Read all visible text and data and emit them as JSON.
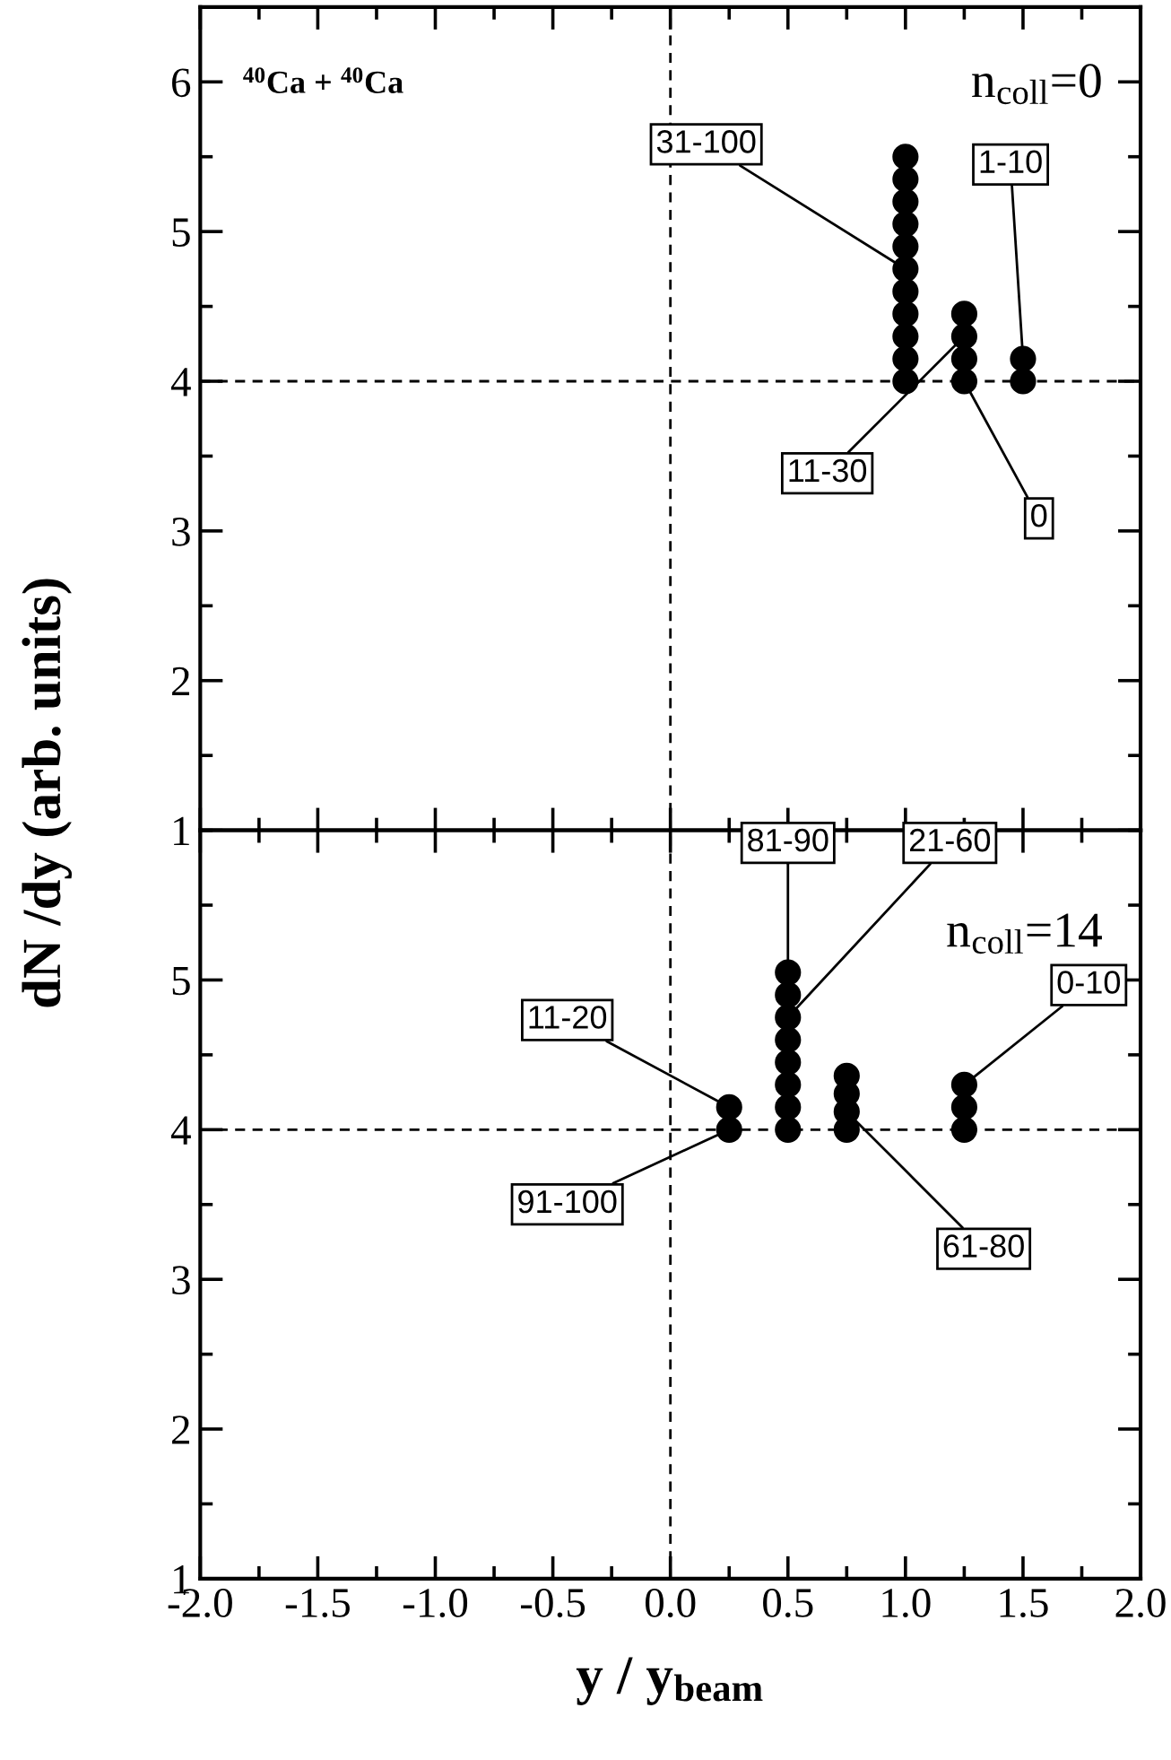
{
  "chart_data": [
    {
      "type": "scatter",
      "ylabel": "dN /dy (arb. units)",
      "xlim": [
        -2.0,
        2.0
      ],
      "xticks": [
        -2,
        -1.5,
        -1,
        -0.5,
        0,
        0.5,
        1,
        1.5,
        2
      ],
      "ylim": [
        1,
        6.5
      ],
      "yticks": [
        1,
        2,
        3,
        4,
        5,
        6
      ],
      "tick_labels": "y",
      "marker": "circle",
      "series": [
        {
          "color": "#000000",
          "x": [
            1.0,
            1.0,
            1.0,
            1.0,
            1.0,
            1.0,
            1.0,
            1.0,
            1.0,
            1.0,
            1.0
          ],
          "values": [
            4.0,
            4.15,
            4.3,
            4.45,
            4.6,
            4.75,
            4.9,
            5.05,
            5.2,
            5.35,
            5.5
          ]
        },
        {
          "color": "#000000",
          "x": [
            1.25,
            1.25,
            1.25,
            1.25
          ],
          "values": [
            4.0,
            4.15,
            4.3,
            4.45
          ]
        },
        {
          "color": "#000000",
          "x": [
            1.5,
            1.5
          ],
          "values": [
            4.0,
            4.15
          ]
        }
      ],
      "ref_lines": [
        {
          "axis": "y",
          "value": 4,
          "line_style": "dashed",
          "color": "#000000"
        },
        {
          "axis": "x",
          "value": 0,
          "line_style": "dashed",
          "color": "#000000"
        }
      ],
      "annotations": [
        "$^{40}$Ca + $^{40}$Ca",
        "n$_{coll}$=0",
        {
          "text": "31-100",
          "x": 1.0,
          "y": 4.75
        },
        {
          "text": "11-30",
          "x": 1.25,
          "y": 4.3
        },
        {
          "text": "0",
          "x": 1.25,
          "y": 4.0
        },
        {
          "text": "1-10",
          "x": 1.5,
          "y": 4.15
        }
      ]
    },
    {
      "type": "scatter",
      "xlabel": "y / y$_{beam}$",
      "xlim": [
        -2.0,
        2.0
      ],
      "xticks": [
        {
          "value": -2,
          "label": "-2.0"
        },
        -1.5,
        {
          "value": -1,
          "label": "-1.0"
        },
        -0.5,
        {
          "value": 0,
          "label": "0.0"
        },
        0.5,
        {
          "value": 1,
          "label": "1.0"
        },
        1.5,
        {
          "value": 2,
          "label": "2.0"
        }
      ],
      "ylim": [
        1,
        6
      ],
      "yticks": [
        1,
        2,
        3,
        4,
        5
      ],
      "marker": "circle",
      "series": [
        {
          "color": "#000000",
          "x": [
            0.25,
            0.25
          ],
          "values": [
            4.0,
            4.15
          ]
        },
        {
          "color": "#000000",
          "x": [
            0.5,
            0.5,
            0.5,
            0.5,
            0.5,
            0.5,
            0.5,
            0.5
          ],
          "values": [
            4.0,
            4.15,
            4.3,
            4.45,
            4.6,
            4.75,
            4.9,
            5.05
          ]
        },
        {
          "color": "#000000",
          "x": [
            0.75,
            0.75,
            0.75,
            0.75
          ],
          "values": [
            4.0,
            4.12,
            4.24,
            4.36
          ]
        },
        {
          "color": "#000000",
          "x": [
            1.25,
            1.25,
            1.25
          ],
          "values": [
            4.0,
            4.15,
            4.3
          ]
        }
      ],
      "ref_lines": [
        {
          "axis": "y",
          "value": 4,
          "line_style": "dashed",
          "color": "#000000"
        },
        {
          "axis": "x",
          "value": 0,
          "line_style": "dashed",
          "color": "#000000"
        }
      ],
      "annotations": [
        "n$_{coll}$=14",
        {
          "text": "81-90",
          "x": 0.5,
          "y": 5.05
        },
        {
          "text": "21-60",
          "x": 0.5,
          "y": 4.75
        },
        {
          "text": "0-10",
          "x": 1.25,
          "y": 4.3
        },
        {
          "text": "11-20",
          "x": 0.25,
          "y": 4.15
        },
        {
          "text": "91-100",
          "x": 0.25,
          "y": 4.0
        },
        {
          "text": "61-80",
          "x": 0.75,
          "y": 4.12
        }
      ]
    }
  ]
}
